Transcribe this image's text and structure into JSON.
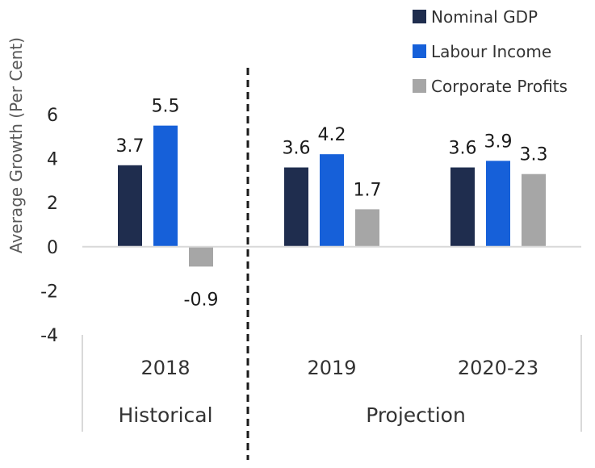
{
  "chart_data": {
    "type": "bar",
    "ylabel": "Average Growth (Per Cent)",
    "ylim": [
      -4,
      6
    ],
    "yticks": [
      6,
      4,
      2,
      0,
      -2,
      -4
    ],
    "categories": [
      "2018",
      "2019",
      "2020-23"
    ],
    "groups": [
      {
        "label": "Historical",
        "categories": [
          "2018"
        ]
      },
      {
        "label": "Projection",
        "categories": [
          "2019",
          "2020-23"
        ]
      }
    ],
    "series": [
      {
        "name": "Nominal GDP",
        "color": "#1f2d4e",
        "values": [
          3.7,
          3.6,
          3.6
        ]
      },
      {
        "name": "Labour Income",
        "color": "#1660d9",
        "values": [
          5.5,
          4.2,
          3.9
        ]
      },
      {
        "name": "Corporate Profits",
        "color": "#a6a6a6",
        "values": [
          -0.9,
          1.7,
          3.3
        ]
      }
    ],
    "data_labels": [
      [
        "3.7",
        "3.6",
        "3.6"
      ],
      [
        "5.5",
        "4.2",
        "3.9"
      ],
      [
        "-0.9",
        "1.7",
        "3.3"
      ]
    ],
    "legend_position": "top-right",
    "grid": false
  }
}
